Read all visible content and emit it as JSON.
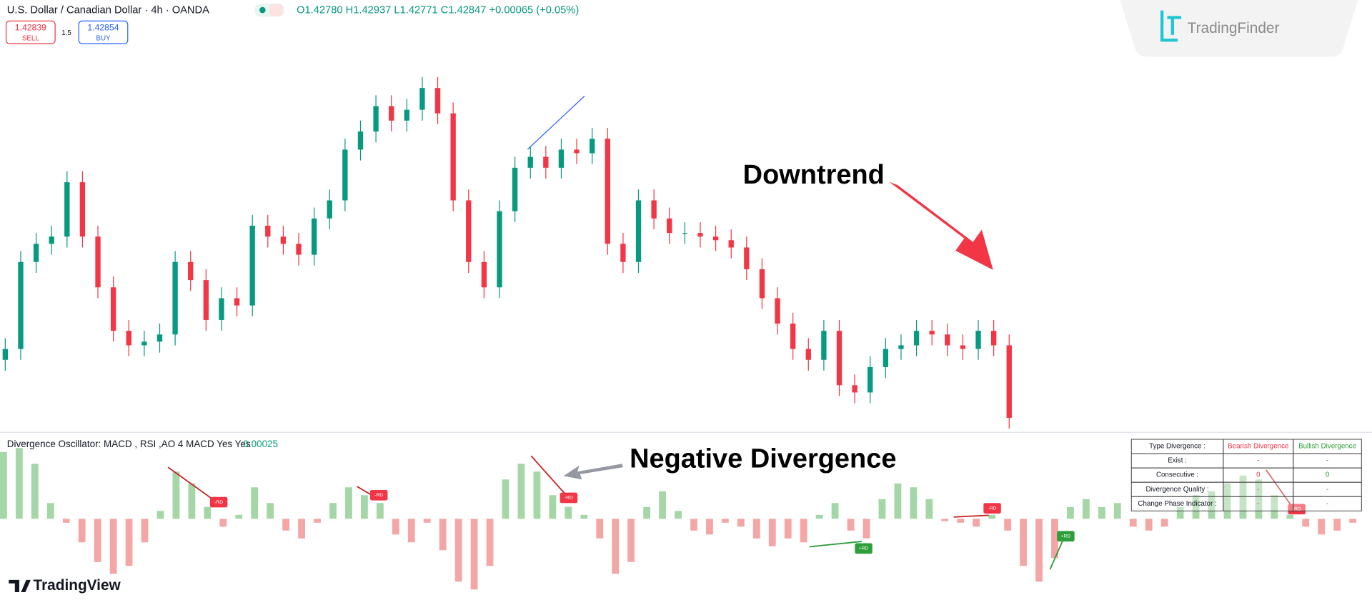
{
  "header": {
    "symbol": "U.S. Dollar / Canadian Dollar · 4h · OANDA",
    "ohlc": "O1.42780 H1.42937 L1.42771 C1.42847 +0.00065 (+0.05%)",
    "sell_price": "1.42839",
    "sell": "SELL",
    "quantity": "1.5",
    "buy_price": "1.42854",
    "buy": "BUY"
  },
  "logo": "TradingFinder",
  "annotations": {
    "downtrend": "Downtrend",
    "negative_divergence": "Negative Divergence"
  },
  "oscillator": {
    "title": "Divergence Oscillator: MACD , RSI ,AO 4 MACD Yes Yes",
    "value": "0.00025"
  },
  "markers": [
    "-RD",
    "-RD",
    "-RD",
    "-RD",
    "-RD",
    "+RD",
    "+RD"
  ],
  "table": {
    "header": [
      "Type Divergence :",
      "Bearish Divergence",
      "Bullish Divergence"
    ],
    "rows": [
      [
        "Exist :",
        "-",
        "-"
      ],
      [
        "Consecutive :",
        "0",
        "0"
      ],
      [
        "Divergence Quality :",
        "-",
        "-"
      ],
      [
        "Change Phase Indicator :",
        "-",
        "-"
      ]
    ]
  },
  "footer": "TradingView",
  "chart_data": [
    {
      "type": "candlestick",
      "up_color": "#089981",
      "down_color": "#f23645",
      "ylim": [
        0,
        100
      ],
      "open": [
        20,
        23,
        47,
        52,
        54,
        69,
        54,
        40,
        28,
        24,
        25,
        27,
        47,
        42,
        31,
        37,
        35,
        57,
        54,
        52,
        49,
        59,
        64,
        78,
        83,
        90,
        86,
        89,
        95,
        88,
        64,
        47,
        40,
        61,
        73,
        76,
        73,
        78,
        77,
        81,
        52,
        47,
        64,
        59,
        55,
        55,
        54,
        53,
        51,
        45,
        37,
        30,
        23,
        20,
        28,
        13,
        11,
        18,
        23,
        24,
        28,
        27,
        24,
        23,
        28,
        24
      ],
      "high": [
        26,
        50,
        55,
        57,
        72,
        72,
        57,
        43,
        31,
        28,
        30,
        50,
        50,
        45,
        40,
        40,
        60,
        60,
        57,
        55,
        62,
        67,
        81,
        86,
        93,
        93,
        92,
        98,
        98,
        91,
        67,
        50,
        64,
        76,
        79,
        79,
        81,
        81,
        84,
        84,
        55,
        67,
        67,
        62,
        58,
        58,
        57,
        56,
        54,
        48,
        40,
        33,
        26,
        31,
        31,
        16,
        21,
        26,
        27,
        31,
        31,
        30,
        27,
        31,
        31,
        27
      ],
      "low": [
        17,
        20,
        44,
        49,
        51,
        51,
        37,
        25,
        21,
        21,
        22,
        24,
        39,
        28,
        28,
        32,
        32,
        51,
        49,
        46,
        46,
        56,
        61,
        75,
        80,
        83,
        83,
        86,
        85,
        61,
        44,
        37,
        37,
        58,
        70,
        70,
        70,
        74,
        74,
        49,
        44,
        44,
        56,
        52,
        52,
        51,
        50,
        48,
        42,
        34,
        27,
        20,
        17,
        17,
        10,
        8,
        8,
        15,
        20,
        21,
        24,
        21,
        20,
        20,
        21,
        1
      ],
      "close": [
        23,
        47,
        52,
        54,
        69,
        54,
        40,
        28,
        24,
        25,
        27,
        47,
        42,
        31,
        37,
        35,
        57,
        54,
        52,
        49,
        59,
        64,
        78,
        83,
        90,
        86,
        89,
        95,
        88,
        64,
        47,
        40,
        61,
        73,
        76,
        73,
        78,
        77,
        81,
        52,
        47,
        64,
        59,
        55,
        55,
        54,
        53,
        51,
        45,
        37,
        30,
        23,
        20,
        28,
        13,
        11,
        18,
        23,
        24,
        28,
        27,
        24,
        23,
        28,
        24,
        4
      ]
    },
    {
      "type": "histogram",
      "positive_color": "#a5d6a7",
      "negative_color": "#f4a6a6",
      "ylim": [
        -100,
        100
      ],
      "values": [
        85,
        90,
        70,
        20,
        -5,
        -30,
        -55,
        -70,
        -60,
        -30,
        10,
        60,
        45,
        15,
        -10,
        5,
        40,
        20,
        -15,
        -25,
        -5,
        20,
        40,
        30,
        20,
        -20,
        -30,
        -5,
        -40,
        -80,
        -90,
        -60,
        50,
        70,
        60,
        30,
        15,
        5,
        -25,
        -70,
        -55,
        15,
        35,
        10,
        -15,
        -20,
        -5,
        -10,
        -25,
        -35,
        -25,
        -30,
        5,
        20,
        -15,
        -25,
        25,
        45,
        40,
        25,
        -3,
        -5,
        -10,
        5,
        -15,
        -60,
        -80,
        -50,
        15,
        25,
        15,
        20,
        -10,
        -15,
        -10,
        15,
        30,
        35,
        45,
        55,
        50,
        30,
        5,
        -10,
        -20,
        -15,
        -5
      ]
    }
  ]
}
